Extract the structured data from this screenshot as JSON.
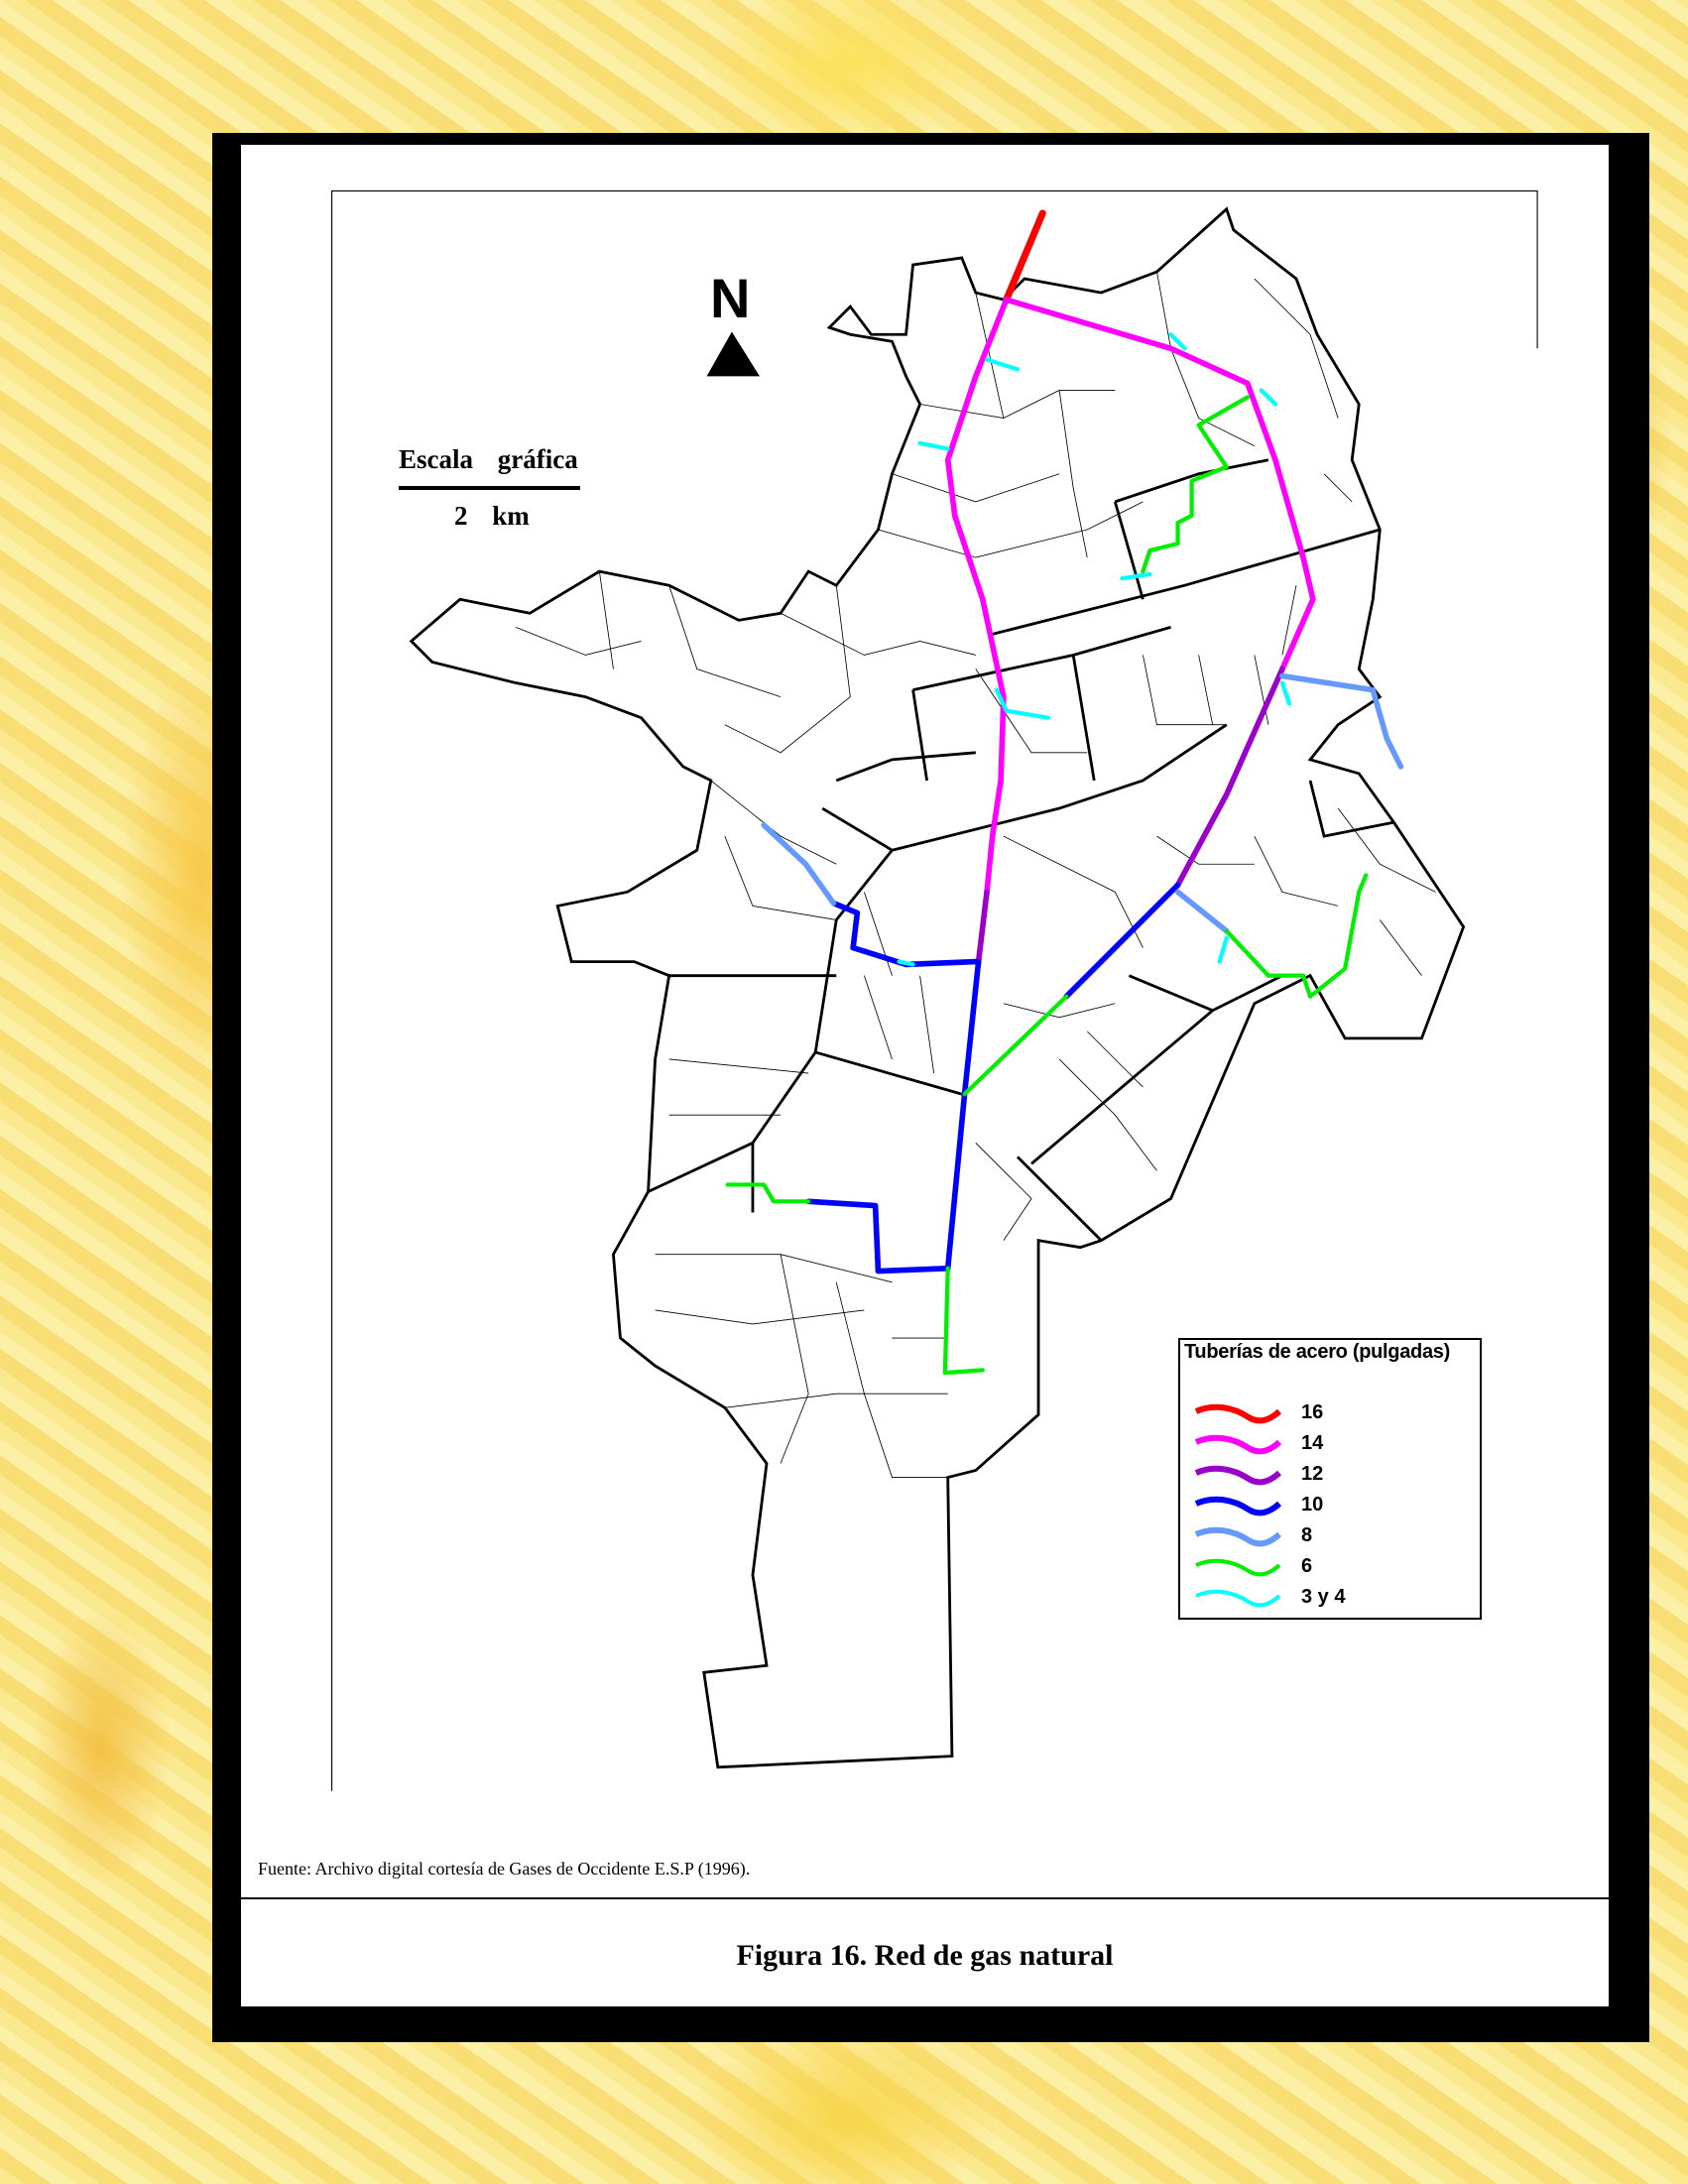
{
  "figure": {
    "caption": "Figura 16. Red de gas natural",
    "source": "Fuente: Archivo digital cortesía de Gases de Occidente E.S.P (1996)."
  },
  "north_arrow": {
    "label": "N"
  },
  "scale": {
    "label": "Escala gráfica",
    "value": "2 km"
  },
  "legend": {
    "title": "Tuberías de acero (pulgadas)",
    "items": [
      {
        "label": "16",
        "color": "#ff0000"
      },
      {
        "label": "14",
        "color": "#ff00ff"
      },
      {
        "label": "12",
        "color": "#9900cc"
      },
      {
        "label": "10",
        "color": "#0000ff"
      },
      {
        "label": "8",
        "color": "#6699ff"
      },
      {
        "label": "6",
        "color": "#00ee00"
      },
      {
        "label": "3 y 4",
        "color": "#00ffff"
      }
    ]
  }
}
